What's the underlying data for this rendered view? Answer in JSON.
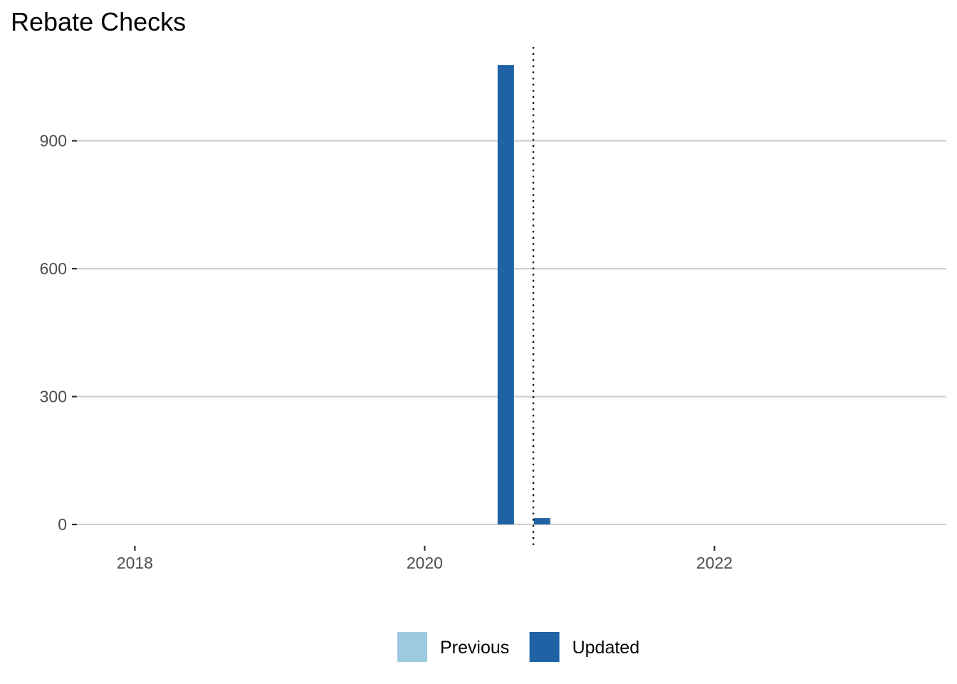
{
  "chart_data": {
    "type": "bar",
    "title": "Rebate Checks",
    "xlabel": "",
    "ylabel": "",
    "x_axis": {
      "ticks": [
        2018,
        2020,
        2022
      ],
      "tick_labels": [
        "2018",
        "2020",
        "2022"
      ],
      "range": [
        2017.6,
        2023.6
      ]
    },
    "y_axis": {
      "ticks": [
        0,
        300,
        600,
        900
      ],
      "tick_labels": [
        "0",
        "300",
        "600",
        "900"
      ],
      "range": [
        -50,
        1120
      ]
    },
    "grid": "horizontal major",
    "reference_line": {
      "x": 2020.75,
      "style": "dotted",
      "color": "#000000"
    },
    "series": [
      {
        "name": "Previous",
        "color": "#9ecae1",
        "points": []
      },
      {
        "name": "Updated",
        "color": "#1f63a5",
        "points": [
          {
            "x": 2020.56,
            "y": 1078
          },
          {
            "x": 2020.81,
            "y": 15
          }
        ]
      }
    ],
    "legend_position": "bottom"
  }
}
